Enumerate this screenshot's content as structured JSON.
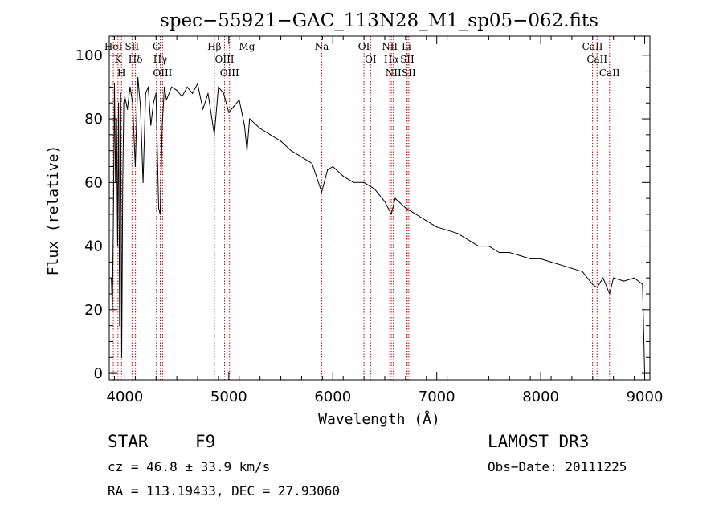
{
  "chart_data": {
    "type": "line",
    "title": "spec−55921−GAC_113N28_M1_sp05−062.fits",
    "xlabel": "Wavelength (Å)",
    "ylabel": "Flux (relative)",
    "xlim": [
      3850,
      9050
    ],
    "ylim": [
      -2,
      106
    ],
    "xticks": [
      4000,
      5000,
      6000,
      7000,
      8000,
      9000
    ],
    "yticks": [
      0,
      20,
      40,
      60,
      80,
      100
    ],
    "grid": false,
    "series": [
      {
        "name": "flux",
        "x": [
          3870,
          3880,
          3890,
          3900,
          3910,
          3920,
          3930,
          3940,
          3950,
          3960,
          3970,
          3980,
          3990,
          4000,
          4025,
          4050,
          4075,
          4100,
          4125,
          4150,
          4175,
          4200,
          4225,
          4250,
          4275,
          4300,
          4325,
          4340,
          4360,
          4380,
          4400,
          4450,
          4500,
          4550,
          4600,
          4650,
          4700,
          4750,
          4800,
          4861,
          4900,
          4950,
          5000,
          5050,
          5100,
          5150,
          5175,
          5200,
          5300,
          5400,
          5500,
          5600,
          5700,
          5800,
          5893,
          5950,
          6000,
          6100,
          6200,
          6300,
          6400,
          6500,
          6563,
          6600,
          6700,
          6800,
          6900,
          7000,
          7100,
          7200,
          7300,
          7400,
          7500,
          7600,
          7700,
          7800,
          7900,
          8000,
          8100,
          8200,
          8300,
          8400,
          8498,
          8542,
          8600,
          8662,
          8700,
          8800,
          8900,
          8980,
          9000
        ],
        "y": [
          30,
          20,
          50,
          91,
          60,
          80,
          40,
          85,
          15,
          88,
          5,
          60,
          85,
          87,
          83,
          90,
          85,
          65,
          93,
          84,
          60,
          88,
          90,
          78,
          85,
          88,
          52,
          50,
          78,
          90,
          86,
          90,
          89,
          87,
          90,
          88,
          91,
          83,
          88,
          75,
          90,
          88,
          82,
          84,
          86,
          78,
          70,
          80,
          77,
          75,
          73,
          70,
          68,
          66,
          57,
          64,
          65,
          62,
          60,
          60,
          58,
          54,
          50,
          55,
          52,
          50,
          48,
          46,
          45,
          44,
          42,
          40,
          40,
          38,
          38,
          37,
          36,
          36,
          35,
          34,
          33,
          32,
          28,
          27,
          30,
          25,
          30,
          29,
          30,
          28,
          0
        ]
      }
    ],
    "line_markers": [
      {
        "label": "HeI",
        "wavelength": 3889
      },
      {
        "label": "K",
        "wavelength": 3934
      },
      {
        "label": "H",
        "wavelength": 3968
      },
      {
        "label": "SII",
        "wavelength": 4069
      },
      {
        "label": "Hδ",
        "wavelength": 4102
      },
      {
        "label": "G",
        "wavelength": 4304
      },
      {
        "label": "Hγ",
        "wavelength": 4341
      },
      {
        "label": "OIII",
        "wavelength": 4363
      },
      {
        "label": "Hβ",
        "wavelength": 4861
      },
      {
        "label": "OIII",
        "wavelength": 4959
      },
      {
        "label": "OIII",
        "wavelength": 5007
      },
      {
        "label": "Mg",
        "wavelength": 5175
      },
      {
        "label": "Na",
        "wavelength": 5893
      },
      {
        "label": "OI",
        "wavelength": 6300
      },
      {
        "label": "OI",
        "wavelength": 6364
      },
      {
        "label": "NII",
        "wavelength": 6548
      },
      {
        "label": "Hα",
        "wavelength": 6563
      },
      {
        "label": "NII",
        "wavelength": 6583
      },
      {
        "label": "Li",
        "wavelength": 6708
      },
      {
        "label": "SII",
        "wavelength": 6716
      },
      {
        "label": "SII",
        "wavelength": 6731
      },
      {
        "label": "CaII",
        "wavelength": 8498
      },
      {
        "label": "CaII",
        "wavelength": 8542
      },
      {
        "label": "CaII",
        "wavelength": 8662
      }
    ]
  },
  "info": {
    "class_label": "STAR",
    "subclass": "F9",
    "survey": "LAMOST DR3",
    "cz_line": "cz = 46.8 ± 33.9 km/s",
    "obs_date": "Obs−Date: 20111225",
    "coords": "RA = 113.19433, DEC =  27.93060"
  },
  "colors": {
    "spectrum": "#000000",
    "line_marker": "#cc0000",
    "axes": "#000000"
  }
}
